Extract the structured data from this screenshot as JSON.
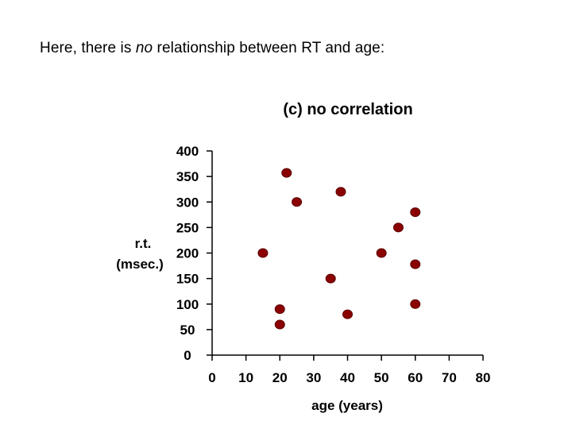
{
  "page": {
    "intro_prefix": "Here, there is ",
    "intro_emphasis": "no",
    "intro_suffix": " relationship between RT and age:"
  },
  "chart_data": {
    "type": "scatter",
    "title": "(c) no correlation",
    "xlabel": "age (years)",
    "ylabel": [
      "r.t.",
      "(msec.)"
    ],
    "xlim": [
      0,
      80
    ],
    "ylim": [
      0,
      400
    ],
    "x_ticks": [
      0,
      10,
      20,
      30,
      40,
      50,
      60,
      70,
      80
    ],
    "y_ticks": [
      0,
      50,
      100,
      150,
      200,
      250,
      300,
      350,
      400
    ],
    "grid": false,
    "legend": "none",
    "marker_color": "#8b0000",
    "points": [
      {
        "x": 15,
        "y": 200
      },
      {
        "x": 20,
        "y": 90
      },
      {
        "x": 20,
        "y": 60
      },
      {
        "x": 22,
        "y": 357
      },
      {
        "x": 25,
        "y": 300
      },
      {
        "x": 35,
        "y": 150
      },
      {
        "x": 38,
        "y": 320
      },
      {
        "x": 40,
        "y": 80
      },
      {
        "x": 50,
        "y": 200
      },
      {
        "x": 55,
        "y": 250
      },
      {
        "x": 60,
        "y": 280
      },
      {
        "x": 60,
        "y": 178
      },
      {
        "x": 60,
        "y": 100
      }
    ]
  }
}
